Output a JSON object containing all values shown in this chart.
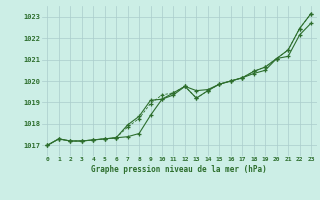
{
  "title": "Graphe pression niveau de la mer (hPa)",
  "bg_color": "#cceee6",
  "grid_color": "#aacccc",
  "line_color": "#2d6e2d",
  "xlim": [
    -0.5,
    23.5
  ],
  "ylim": [
    1016.5,
    1023.5
  ],
  "yticks": [
    1017,
    1018,
    1019,
    1020,
    1021,
    1022,
    1023
  ],
  "xticks": [
    0,
    1,
    2,
    3,
    4,
    5,
    6,
    7,
    8,
    9,
    10,
    11,
    12,
    13,
    14,
    15,
    16,
    17,
    18,
    19,
    20,
    21,
    22,
    23
  ],
  "line1": [
    1017.0,
    1017.3,
    1017.2,
    1017.2,
    1017.25,
    1017.3,
    1017.35,
    1017.4,
    1017.55,
    1018.4,
    1019.15,
    1019.35,
    1019.75,
    1019.55,
    1019.6,
    1019.85,
    1020.0,
    1020.15,
    1020.35,
    1020.5,
    1021.05,
    1021.15,
    1022.15,
    1022.7
  ],
  "line2": [
    1017.0,
    1017.3,
    1017.2,
    1017.2,
    1017.25,
    1017.3,
    1017.35,
    1017.95,
    1018.35,
    1019.1,
    1019.15,
    1019.45,
    1019.75,
    1019.2,
    1019.55,
    1019.85,
    1020.0,
    1020.15,
    1020.45,
    1020.65,
    1021.05,
    1021.45,
    1022.45,
    1023.15
  ],
  "line3": [
    1017.0,
    1017.3,
    1017.2,
    1017.2,
    1017.25,
    1017.3,
    1017.35,
    1017.85,
    1018.25,
    1018.95,
    1019.35,
    1019.45,
    1019.75,
    1019.2,
    1019.55,
    1019.85,
    1020.0,
    1020.15,
    1020.45,
    1020.65,
    1021.05,
    1021.45,
    1022.45,
    1023.15
  ]
}
